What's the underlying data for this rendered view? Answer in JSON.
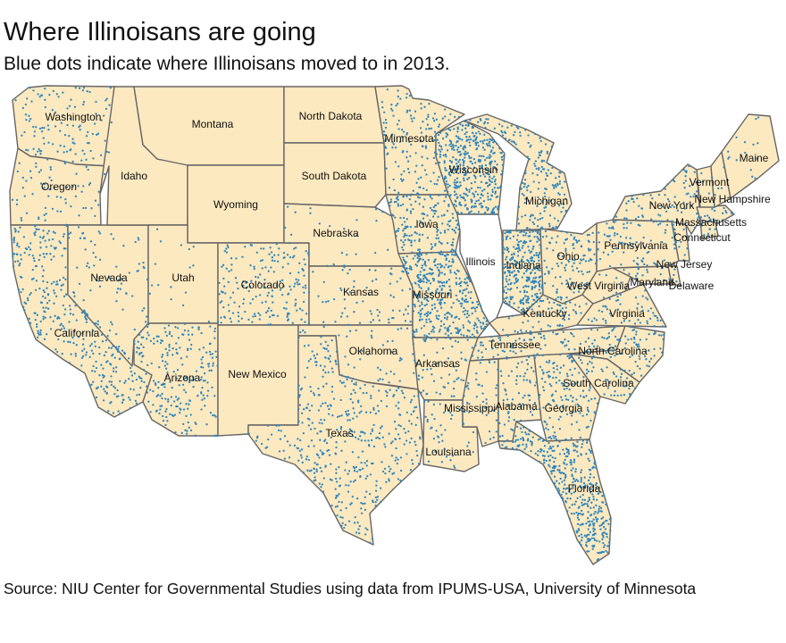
{
  "title": "Where Illinoisans are going",
  "subtitle": "Blue dots indicate where Illinoisans moved to in 2013.",
  "source": "Source:  NIU Center for Governmental Studies using data from IPUMS-USA, University of Minnesota",
  "colors": {
    "land": "#FDE9C0",
    "dot": "#2E86BD",
    "border": "#666666",
    "illinois": "#FFFFFF"
  },
  "map_data": {
    "origin_state": "Illinois",
    "states": [
      {
        "name": "Washington",
        "density": 1.3
      },
      {
        "name": "Oregon",
        "density": 0.9
      },
      {
        "name": "California",
        "density": 2.4
      },
      {
        "name": "Nevada",
        "density": 0.7
      },
      {
        "name": "Idaho",
        "density": 0.0
      },
      {
        "name": "Montana",
        "density": 0.0
      },
      {
        "name": "Wyoming",
        "density": 0.0
      },
      {
        "name": "Utah",
        "density": 0.2
      },
      {
        "name": "Arizona",
        "density": 2.3
      },
      {
        "name": "Colorado",
        "density": 2.0
      },
      {
        "name": "New Mexico",
        "density": 0.0
      },
      {
        "name": "North Dakota",
        "density": 0.0
      },
      {
        "name": "South Dakota",
        "density": 0.0
      },
      {
        "name": "Nebraska",
        "density": 0.3
      },
      {
        "name": "Kansas",
        "density": 0.9
      },
      {
        "name": "Oklahoma",
        "density": 0.7
      },
      {
        "name": "Texas",
        "density": 2.0
      },
      {
        "name": "Minnesota",
        "density": 1.8
      },
      {
        "name": "Iowa",
        "density": 3.5
      },
      {
        "name": "Missouri",
        "density": 5.5
      },
      {
        "name": "Arkansas",
        "density": 1.3
      },
      {
        "name": "Louisiana",
        "density": 1.0
      },
      {
        "name": "Wisconsin",
        "density": 6.5
      },
      {
        "name": "Michigan",
        "density": 3.0
      },
      {
        "name": "Illinois",
        "density": 0.0
      },
      {
        "name": "Indiana",
        "density": 7.5
      },
      {
        "name": "Ohio",
        "density": 2.5
      },
      {
        "name": "Kentucky",
        "density": 2.0
      },
      {
        "name": "Tennessee",
        "density": 2.5
      },
      {
        "name": "Mississippi",
        "density": 1.3
      },
      {
        "name": "Alabama",
        "density": 1.8
      },
      {
        "name": "Georgia",
        "density": 2.5
      },
      {
        "name": "Florida",
        "density": 5.5
      },
      {
        "name": "South Carolina",
        "density": 2.0
      },
      {
        "name": "North Carolina",
        "density": 2.3
      },
      {
        "name": "Virginia",
        "density": 1.8
      },
      {
        "name": "West Virginia",
        "density": 0.5
      },
      {
        "name": "Maryland",
        "density": 2.0
      },
      {
        "name": "Delaware",
        "density": 2.0
      },
      {
        "name": "Pennsylvania",
        "density": 1.8
      },
      {
        "name": "New Jersey",
        "density": 2.5
      },
      {
        "name": "New York",
        "density": 2.0
      },
      {
        "name": "Connecticut",
        "density": 2.5
      },
      {
        "name": "Massachusetts",
        "density": 3.0
      },
      {
        "name": "Vermont",
        "density": 0.4
      },
      {
        "name": "New Hampshire",
        "density": 0.6
      },
      {
        "name": "Maine",
        "density": 0.4
      }
    ]
  }
}
